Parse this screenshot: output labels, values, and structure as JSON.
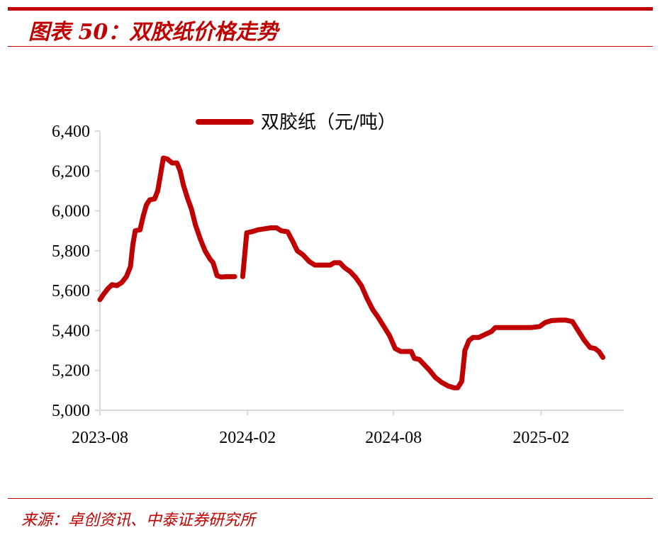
{
  "header": {
    "title": "图表 50：双胶纸价格走势"
  },
  "footer": {
    "source": "来源：卓创资讯、中泰证券研究所"
  },
  "colors": {
    "accent": "#c00000",
    "series": "#c00000",
    "axis": "#d9d9d9"
  },
  "chart_data": {
    "type": "line",
    "title": "",
    "xlabel": "",
    "ylabel": "",
    "ylim": [
      5000,
      6400
    ],
    "yticks": [
      5000,
      5200,
      5400,
      5600,
      5800,
      6000,
      6200,
      6400
    ],
    "ytick_labels": [
      "5,000",
      "5,200",
      "5,400",
      "5,600",
      "5,800",
      "6,000",
      "6,200",
      "6,400"
    ],
    "xlim": [
      "2023-08-01",
      "2025-05-15"
    ],
    "xticks": [
      "2023-08-01",
      "2024-02-01",
      "2024-08-01",
      "2025-02-01"
    ],
    "xtick_labels": [
      "2023-08",
      "2024-02",
      "2024-08",
      "2025-02"
    ],
    "grid": false,
    "legend": "top-center",
    "series": [
      {
        "name": "双胶纸（元/吨）",
        "segments": [
          [
            [
              "2023-08-01",
              5555
            ],
            [
              "2023-08-06",
              5585
            ],
            [
              "2023-08-11",
              5610
            ],
            [
              "2023-08-16",
              5630
            ],
            [
              "2023-08-22",
              5625
            ],
            [
              "2023-08-28",
              5640
            ],
            [
              "2023-09-03",
              5670
            ],
            [
              "2023-09-08",
              5720
            ],
            [
              "2023-09-11",
              5830
            ],
            [
              "2023-09-14",
              5900
            ],
            [
              "2023-09-20",
              5905
            ],
            [
              "2023-09-24",
              5975
            ],
            [
              "2023-09-28",
              6030
            ],
            [
              "2023-10-02",
              6055
            ],
            [
              "2023-10-08",
              6060
            ],
            [
              "2023-10-12",
              6100
            ],
            [
              "2023-10-15",
              6170
            ],
            [
              "2023-10-19",
              6265
            ],
            [
              "2023-10-24",
              6260
            ],
            [
              "2023-10-30",
              6240
            ],
            [
              "2023-11-05",
              6240
            ],
            [
              "2023-11-09",
              6200
            ],
            [
              "2023-11-13",
              6130
            ],
            [
              "2023-11-18",
              6065
            ],
            [
              "2023-11-23",
              6010
            ],
            [
              "2023-11-28",
              5930
            ],
            [
              "2023-12-04",
              5860
            ],
            [
              "2023-12-10",
              5800
            ],
            [
              "2023-12-16",
              5760
            ],
            [
              "2023-12-20",
              5740
            ],
            [
              "2023-12-25",
              5675
            ],
            [
              "2023-12-30",
              5668
            ],
            [
              "2024-01-07",
              5670
            ],
            [
              "2024-01-16",
              5670
            ]
          ],
          [
            [
              "2024-01-26",
              5670
            ],
            [
              "2024-01-31",
              5890
            ],
            [
              "2024-02-06",
              5895
            ],
            [
              "2024-02-14",
              5905
            ],
            [
              "2024-02-22",
              5910
            ],
            [
              "2024-03-01",
              5915
            ],
            [
              "2024-03-08",
              5915
            ],
            [
              "2024-03-14",
              5900
            ],
            [
              "2024-03-22",
              5895
            ],
            [
              "2024-03-28",
              5850
            ],
            [
              "2024-04-03",
              5800
            ],
            [
              "2024-04-10",
              5780
            ],
            [
              "2024-04-18",
              5745
            ],
            [
              "2024-04-25",
              5728
            ],
            [
              "2024-05-05",
              5728
            ],
            [
              "2024-05-14",
              5728
            ],
            [
              "2024-05-19",
              5740
            ],
            [
              "2024-05-26",
              5740
            ],
            [
              "2024-06-01",
              5715
            ],
            [
              "2024-06-08",
              5695
            ],
            [
              "2024-06-15",
              5665
            ],
            [
              "2024-06-22",
              5625
            ],
            [
              "2024-06-29",
              5560
            ],
            [
              "2024-07-06",
              5505
            ],
            [
              "2024-07-13",
              5465
            ],
            [
              "2024-07-20",
              5420
            ],
            [
              "2024-07-27",
              5375
            ],
            [
              "2024-08-03",
              5310
            ],
            [
              "2024-08-10",
              5295
            ],
            [
              "2024-08-17",
              5295
            ],
            [
              "2024-08-23",
              5295
            ],
            [
              "2024-08-27",
              5260
            ],
            [
              "2024-09-02",
              5255
            ],
            [
              "2024-09-08",
              5230
            ],
            [
              "2024-09-15",
              5200
            ],
            [
              "2024-09-22",
              5165
            ],
            [
              "2024-09-30",
              5140
            ],
            [
              "2024-10-08",
              5122
            ],
            [
              "2024-10-15",
              5113
            ],
            [
              "2024-10-20",
              5113
            ],
            [
              "2024-10-25",
              5145
            ],
            [
              "2024-10-29",
              5300
            ],
            [
              "2024-11-03",
              5350
            ],
            [
              "2024-11-08",
              5365
            ],
            [
              "2024-11-15",
              5365
            ],
            [
              "2024-11-23",
              5380
            ],
            [
              "2024-12-01",
              5395
            ],
            [
              "2024-12-06",
              5415
            ],
            [
              "2024-12-20",
              5415
            ],
            [
              "2025-01-05",
              5415
            ],
            [
              "2025-01-20",
              5415
            ],
            [
              "2025-01-30",
              5420
            ],
            [
              "2025-02-06",
              5440
            ],
            [
              "2025-02-14",
              5450
            ],
            [
              "2025-02-24",
              5452
            ],
            [
              "2025-03-04",
              5452
            ],
            [
              "2025-03-12",
              5445
            ],
            [
              "2025-03-19",
              5400
            ],
            [
              "2025-03-27",
              5350
            ],
            [
              "2025-04-03",
              5315
            ],
            [
              "2025-04-09",
              5310
            ],
            [
              "2025-04-14",
              5295
            ],
            [
              "2025-04-19",
              5265
            ]
          ]
        ]
      }
    ]
  }
}
